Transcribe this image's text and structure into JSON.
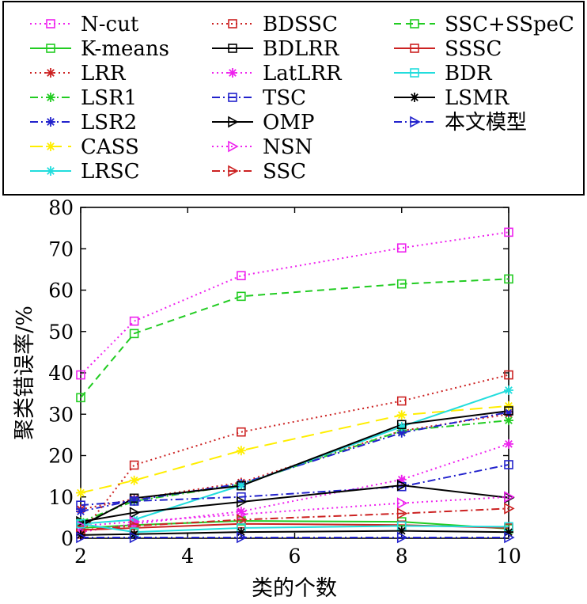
{
  "chart_data": {
    "type": "line",
    "xlabel": "类的个数",
    "ylabel": "聚类错误率/%",
    "x": [
      2,
      3,
      5,
      8,
      10
    ],
    "xlim": [
      2,
      10
    ],
    "ylim": [
      0,
      80
    ],
    "xticks": [
      "2",
      "4",
      "6",
      "8",
      "10"
    ],
    "yticks": [
      "0",
      "10",
      "20",
      "30",
      "40",
      "50",
      "60",
      "70",
      "80"
    ],
    "grid": false,
    "legend_position": "top, above plot, 3 columns",
    "series": [
      {
        "name": "N-cut",
        "color": "#ee22ee",
        "dash": "dot",
        "marker": "square",
        "values": [
          39.5,
          52.5,
          63.5,
          70.2,
          74.0
        ]
      },
      {
        "name": "K-means",
        "color": "#22cc22",
        "dash": "solid",
        "marker": "square",
        "values": [
          2.5,
          3.2,
          4.2,
          4.0,
          2.3
        ]
      },
      {
        "name": "LRR",
        "color": "#cc2222",
        "dash": "dot",
        "marker": "star",
        "values": [
          7.0,
          9.5,
          13.5,
          26.0,
          30.0
        ]
      },
      {
        "name": "LSR1",
        "color": "#22cc22",
        "dash": "dashdot",
        "marker": "star",
        "values": [
          4.0,
          9.0,
          13.0,
          26.0,
          28.5
        ]
      },
      {
        "name": "LSR2",
        "color": "#2222cc",
        "dash": "dashdot",
        "marker": "star",
        "values": [
          6.5,
          9.2,
          13.2,
          25.5,
          30.5
        ]
      },
      {
        "name": "CASS",
        "color": "#ffee00",
        "dash": "longdash",
        "marker": "star",
        "values": [
          11.0,
          14.0,
          21.2,
          29.8,
          32.0
        ]
      },
      {
        "name": "LRSC",
        "color": "#22dddd",
        "dash": "solid",
        "marker": "star",
        "values": [
          3.5,
          4.5,
          12.8,
          27.0,
          35.8
        ]
      },
      {
        "name": "BDSSC",
        "color": "#cc2222",
        "dash": "dot",
        "marker": "square",
        "values": [
          1.0,
          17.7,
          25.7,
          33.2,
          39.5
        ]
      },
      {
        "name": "BDLRR",
        "color": "#000000",
        "dash": "solid",
        "marker": "square",
        "values": [
          3.0,
          9.7,
          12.7,
          27.5,
          30.8
        ]
      },
      {
        "name": "LatLRR",
        "color": "#ee22ee",
        "dash": "dot",
        "marker": "star",
        "values": [
          1.5,
          3.5,
          6.5,
          14.2,
          22.8
        ]
      },
      {
        "name": "TSC",
        "color": "#2222cc",
        "dash": "dashdot",
        "marker": "square",
        "values": [
          8.0,
          9.0,
          10.0,
          12.5,
          17.8
        ]
      },
      {
        "name": "OMP",
        "color": "#000000",
        "dash": "solid",
        "marker": "triangle-right",
        "values": [
          4.0,
          6.2,
          8.8,
          12.8,
          9.8
        ]
      },
      {
        "name": "NSN",
        "color": "#ee22ee",
        "dash": "dot",
        "marker": "triangle-right",
        "values": [
          3.0,
          4.0,
          5.8,
          8.5,
          10.0
        ]
      },
      {
        "name": "SSC",
        "color": "#cc2222",
        "dash": "dashdot",
        "marker": "triangle-right",
        "values": [
          2.0,
          3.0,
          4.5,
          6.0,
          7.2
        ]
      },
      {
        "name": "SSC+SSpeC",
        "color": "#22cc22",
        "dash": "dash",
        "marker": "square",
        "values": [
          34.0,
          49.5,
          58.5,
          61.5,
          62.7
        ]
      },
      {
        "name": "SSSC",
        "color": "#cc2222",
        "dash": "solid",
        "marker": "square",
        "values": [
          2.0,
          2.5,
          3.5,
          3.2,
          2.5
        ]
      },
      {
        "name": "BDR",
        "color": "#22dddd",
        "dash": "solid",
        "marker": "square",
        "values": [
          3.5,
          1.5,
          2.5,
          3.0,
          2.8
        ]
      },
      {
        "name": "LSMR",
        "color": "#000000",
        "dash": "solid",
        "marker": "star",
        "values": [
          0.8,
          1.0,
          1.5,
          1.8,
          1.5
        ]
      },
      {
        "name": "本文模型",
        "color": "#2222cc",
        "dash": "dashdot",
        "marker": "triangle-right",
        "values": [
          0.2,
          0.2,
          0.2,
          0.2,
          0.2
        ]
      }
    ]
  }
}
